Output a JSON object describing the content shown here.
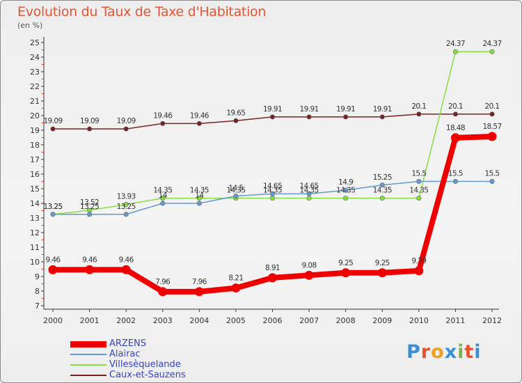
{
  "title": "Evolution du Taux de Taxe d'Habitation",
  "unit_note": "(en %)",
  "logo": {
    "letters": [
      "P",
      "r",
      "o",
      "x",
      "i",
      "t",
      "i"
    ],
    "colors": [
      "#3a8fd6",
      "#e8532f",
      "#f0a020",
      "#3a8fd6",
      "#7ab648",
      "#e8532f",
      "#3a8fd6"
    ]
  },
  "chart_data": {
    "type": "line",
    "title": "Evolution du Taux de Taxe d'Habitation",
    "ylabel": "(en %)",
    "x": [
      "2000",
      "2001",
      "2002",
      "2003",
      "2004",
      "2005",
      "2006",
      "2007",
      "2008",
      "2009",
      "2010",
      "2011",
      "2012"
    ],
    "ylim": [
      7,
      25
    ],
    "yticks": [
      7,
      8,
      9,
      10,
      11,
      12,
      13,
      14,
      15,
      16,
      17,
      18,
      19,
      20,
      21,
      22,
      23,
      24,
      25
    ],
    "grid": false,
    "legend_position": "bottom-left",
    "series": [
      {
        "name": "ARZENS",
        "color": "#ee0000",
        "values": [
          9.46,
          9.46,
          9.46,
          7.96,
          7.96,
          8.21,
          8.91,
          9.08,
          9.25,
          9.25,
          9.39,
          18.48,
          18.57
        ],
        "labels": [
          "9.46",
          "9.46",
          "9.46",
          "7.96",
          "7.96",
          "8.21",
          "8.91",
          "9.08",
          "9.25",
          "9.25",
          "9.39",
          "18.48",
          "18.57"
        ]
      },
      {
        "name": "Alairac",
        "color": "#6699cc",
        "values": [
          13.25,
          13.25,
          13.25,
          14.0,
          14.0,
          14.5,
          14.65,
          14.65,
          14.9,
          15.25,
          15.5,
          15.5,
          15.5
        ],
        "labels": [
          "13.25",
          "13.25",
          "13.25",
          "14",
          "14",
          "14.5",
          "14.65",
          "14.65",
          "14.9",
          "15.25",
          "15.5",
          "15.5",
          "15.5"
        ]
      },
      {
        "name": "Villesèquelande",
        "color": "#88dd44",
        "values": [
          13.25,
          13.52,
          13.93,
          14.35,
          14.35,
          14.35,
          14.35,
          14.35,
          14.35,
          14.35,
          14.35,
          24.37,
          24.37
        ],
        "labels": [
          "13.25",
          "13.52",
          "13.93",
          "14.35",
          "14.35",
          "14.35",
          "14.35",
          "14.35",
          "14.35",
          "14.35",
          "14.35",
          "24.37",
          "24.37"
        ]
      },
      {
        "name": "Caux-et-Sauzens",
        "color": "#772222",
        "values": [
          19.09,
          19.09,
          19.09,
          19.46,
          19.46,
          19.65,
          19.91,
          19.91,
          19.91,
          19.91,
          20.1,
          20.1,
          20.1
        ],
        "labels": [
          "19.09",
          "19.09",
          "19.09",
          "19.46",
          "19.46",
          "19.65",
          "19.91",
          "19.91",
          "19.91",
          "19.91",
          "20.1",
          "20.1",
          "20.1"
        ]
      }
    ]
  }
}
